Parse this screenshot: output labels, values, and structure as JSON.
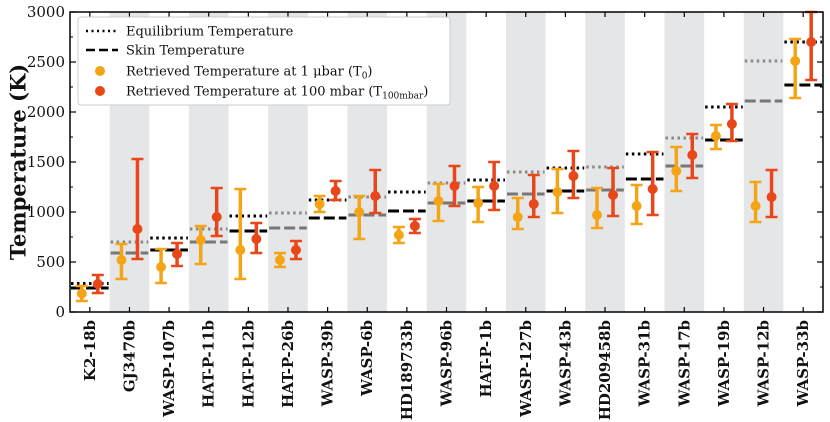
{
  "chart_data": {
    "type": "errorbar",
    "ylabel": "Temperature (K)",
    "ylim": [
      0,
      3000
    ],
    "yticks": [
      0,
      500,
      1000,
      1500,
      2000,
      2500,
      3000
    ],
    "categories": [
      "K2-18b",
      "GJ3470b",
      "WASP-107b",
      "HAT-P-11b",
      "HAT-P-12b",
      "HAT-P-26b",
      "WASP-39b",
      "WASP-6b",
      "HD189733b",
      "WASP-96b",
      "HAT-P-1b",
      "WASP-127b",
      "WASP-43b",
      "HD209458b",
      "WASP-31b",
      "WASP-17b",
      "WASP-19b",
      "WASP-12b",
      "WASP-33b"
    ],
    "legend": {
      "position": "top-left",
      "entries": [
        {
          "label": "Equilibrium Temperature",
          "style": "dotted"
        },
        {
          "label": "Skin Temperature",
          "style": "dashed"
        },
        {
          "label": "Retrieved Temperature at 1 μbar (T",
          "sub": "0",
          "tail": ")",
          "style": "marker",
          "color": "#f5a416"
        },
        {
          "label": "Retrieved Temperature at 100 mbar (T",
          "sub": "100mbar",
          "tail": ")",
          "style": "marker",
          "color": "#e8471a"
        }
      ]
    },
    "series": [
      {
        "name": "Equilibrium Temperature",
        "color": "#000000",
        "values": [
          285,
          700,
          740,
          830,
          960,
          990,
          1120,
          1150,
          1200,
          1290,
          1320,
          1400,
          1440,
          1450,
          1580,
          1740,
          2050,
          2510,
          2700
        ]
      },
      {
        "name": "Skin Temperature",
        "color": "#000000",
        "values": [
          240,
          590,
          620,
          700,
          810,
          840,
          940,
          970,
          1010,
          1090,
          1110,
          1180,
          1210,
          1220,
          1330,
          1460,
          1720,
          2110,
          2270
        ]
      },
      {
        "name": "Retrieved Temperature at 1 μbar (T0)",
        "color": "#f5a416",
        "values": [
          185,
          520,
          450,
          720,
          620,
          520,
          1080,
          1000,
          770,
          1110,
          1090,
          950,
          1200,
          970,
          1060,
          1410,
          1760,
          1060,
          2510
        ],
        "err_low": [
          75,
          190,
          160,
          240,
          290,
          70,
          80,
          270,
          80,
          200,
          190,
          120,
          210,
          130,
          180,
          200,
          130,
          160,
          370
        ],
        "err_high": [
          75,
          160,
          180,
          140,
          610,
          70,
          80,
          160,
          80,
          170,
          160,
          190,
          230,
          270,
          210,
          240,
          110,
          240,
          220
        ]
      },
      {
        "name": "Retrieved Temperature at 100 mbar (T100mbar)",
        "color": "#e8471a",
        "values": [
          280,
          830,
          580,
          950,
          730,
          620,
          1210,
          1160,
          860,
          1260,
          1260,
          1080,
          1360,
          1170,
          1230,
          1570,
          1880,
          1150,
          2700
        ],
        "err_low": [
          90,
          300,
          120,
          190,
          140,
          90,
          90,
          170,
          70,
          200,
          240,
          130,
          220,
          210,
          260,
          230,
          170,
          200,
          380
        ],
        "err_high": [
          90,
          700,
          110,
          290,
          160,
          90,
          100,
          260,
          70,
          200,
          240,
          290,
          250,
          270,
          370,
          210,
          200,
          270,
          380
        ]
      }
    ]
  }
}
